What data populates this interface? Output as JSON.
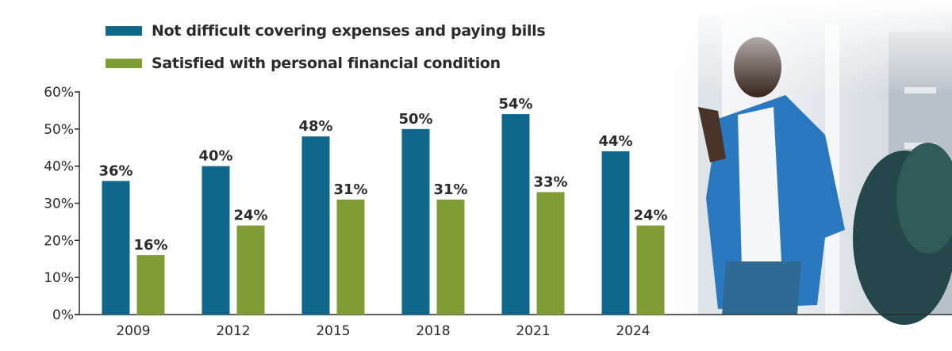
{
  "chart_data": {
    "type": "bar",
    "title": "",
    "xlabel": "",
    "ylabel": "",
    "categories": [
      "2009",
      "2012",
      "2015",
      "2018",
      "2021",
      "2024"
    ],
    "series": [
      {
        "name": "Not difficult covering expenses and paying bills",
        "color": "#10678c",
        "values": [
          36,
          40,
          48,
          50,
          54,
          44
        ],
        "labels": [
          "36%",
          "40%",
          "48%",
          "50%",
          "54%",
          "44%"
        ]
      },
      {
        "name": "Satisfied with personal financial condition",
        "color": "#7f9c35",
        "values": [
          16,
          24,
          31,
          31,
          33,
          24
        ],
        "labels": [
          "16%",
          "24%",
          "31%",
          "31%",
          "33%",
          "24%"
        ]
      }
    ],
    "ylim": [
      0,
      60
    ],
    "yticks": [
      0,
      10,
      20,
      30,
      40,
      50,
      60
    ],
    "ytick_labels": [
      "0%",
      "10%",
      "20%",
      "30%",
      "40%",
      "50%",
      "60%"
    ],
    "grid": false,
    "legend_position": "top-left",
    "background_image": "man-in-blue-shirt-by-window-with-plant"
  }
}
